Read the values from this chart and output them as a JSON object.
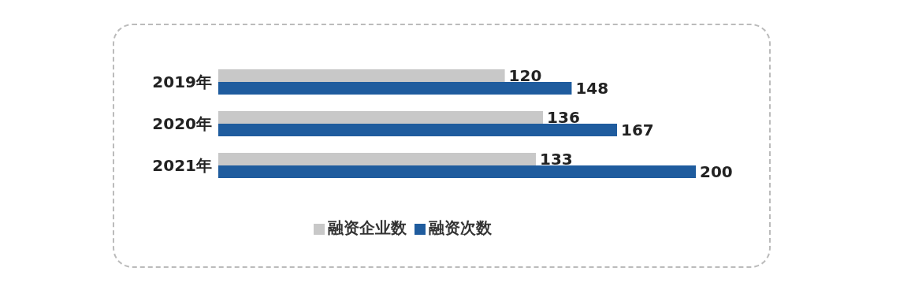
{
  "chart_data": {
    "type": "bar",
    "orientation": "horizontal",
    "categories": [
      "2019年",
      "2020年",
      "2021年"
    ],
    "series": [
      {
        "name": "融资企业数",
        "color": "#c8c8c8",
        "values": [
          120,
          136,
          133
        ]
      },
      {
        "name": "融资次数",
        "color": "#1f5c9e",
        "values": [
          148,
          167,
          200
        ]
      }
    ],
    "data_labels": true,
    "legend": "bottom",
    "grid": false,
    "tick_labels": "y"
  }
}
